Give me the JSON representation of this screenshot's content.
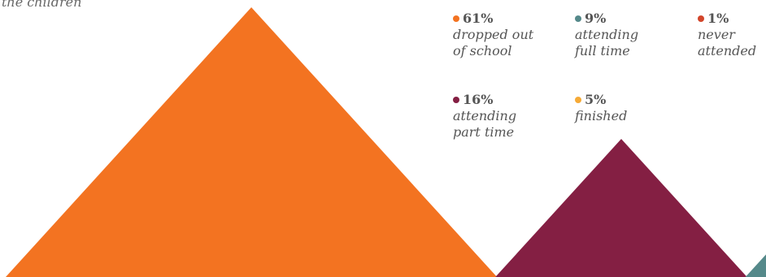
{
  "caption": "the children",
  "chart_data": {
    "type": "area",
    "title": "",
    "unit": "%",
    "series": [
      {
        "label": "61%",
        "value": 61,
        "desc": [
          "dropped out",
          "of school"
        ],
        "color": "#F37321"
      },
      {
        "label": "16%",
        "value": 16,
        "desc": [
          "attending",
          "part time"
        ],
        "color": "#841F43"
      },
      {
        "label": "9%",
        "value": 9,
        "desc": [
          "attending",
          "full time"
        ],
        "color": "#55898A"
      },
      {
        "label": "5%",
        "value": 5,
        "desc": [
          "finished"
        ],
        "color": "#F6AA36"
      },
      {
        "label": "1%",
        "value": 1,
        "desc": [
          "never",
          "attended"
        ],
        "color": "#D2452A"
      }
    ]
  }
}
